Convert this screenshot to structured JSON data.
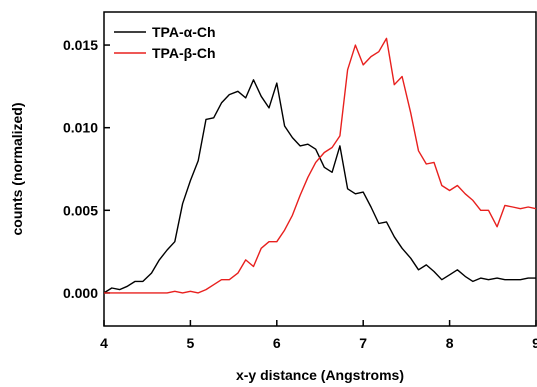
{
  "chart_data": {
    "type": "line",
    "title": "",
    "xlabel": "x-y distance (Angstroms)",
    "ylabel": "counts (normalized)",
    "xlim": [
      4,
      9
    ],
    "ylim": [
      -0.002,
      0.017
    ],
    "grid": false,
    "legend_position": "top-left",
    "x_ticks": [
      "4",
      "5",
      "6",
      "7",
      "8",
      "9"
    ],
    "y_ticks": [
      "0.000",
      "0.005",
      "0.010",
      "0.015"
    ],
    "series": [
      {
        "name": "TPA-α-Ch",
        "color": "#000000",
        "x": [
          4.0,
          4.09,
          4.18,
          4.27,
          4.36,
          4.45,
          4.55,
          4.64,
          4.73,
          4.82,
          4.91,
          5.0,
          5.09,
          5.18,
          5.27,
          5.36,
          5.45,
          5.55,
          5.64,
          5.73,
          5.82,
          5.91,
          6.0,
          6.09,
          6.18,
          6.27,
          6.36,
          6.45,
          6.55,
          6.64,
          6.73,
          6.82,
          6.91,
          7.0,
          7.09,
          7.18,
          7.27,
          7.36,
          7.45,
          7.55,
          7.64,
          7.73,
          7.82,
          7.91,
          8.0,
          8.09,
          8.18,
          8.27,
          8.36,
          8.45,
          8.55,
          8.64,
          8.73,
          8.82,
          8.91,
          9.0
        ],
        "y": [
          0.0,
          0.0003,
          0.0002,
          0.0004,
          0.0007,
          0.0007,
          0.0012,
          0.002,
          0.0026,
          0.0031,
          0.0054,
          0.0068,
          0.008,
          0.0105,
          0.0106,
          0.0115,
          0.012,
          0.0122,
          0.0118,
          0.0129,
          0.0119,
          0.0112,
          0.0127,
          0.0101,
          0.0094,
          0.0089,
          0.009,
          0.0087,
          0.0076,
          0.0073,
          0.0089,
          0.0063,
          0.006,
          0.0061,
          0.0052,
          0.0042,
          0.0043,
          0.0034,
          0.0027,
          0.0021,
          0.0014,
          0.0017,
          0.0013,
          0.0008,
          0.0011,
          0.0014,
          0.001,
          0.0007,
          0.0009,
          0.0008,
          0.0009,
          0.0008,
          0.0008,
          0.0008,
          0.0009,
          0.0009
        ]
      },
      {
        "name": "TPA-β-Ch",
        "color": "#e8201e",
        "x": [
          4.0,
          4.09,
          4.18,
          4.27,
          4.36,
          4.45,
          4.55,
          4.64,
          4.73,
          4.82,
          4.91,
          5.0,
          5.09,
          5.18,
          5.27,
          5.36,
          5.45,
          5.55,
          5.64,
          5.73,
          5.82,
          5.91,
          6.0,
          6.09,
          6.18,
          6.27,
          6.36,
          6.45,
          6.55,
          6.64,
          6.73,
          6.82,
          6.91,
          7.0,
          7.09,
          7.18,
          7.27,
          7.36,
          7.45,
          7.55,
          7.64,
          7.73,
          7.82,
          7.91,
          8.0,
          8.09,
          8.18,
          8.27,
          8.36,
          8.45,
          8.55,
          8.64,
          8.73,
          8.82,
          8.91,
          9.0
        ],
        "y": [
          0.0,
          0.0,
          0.0,
          0.0,
          0.0,
          0.0,
          0.0,
          0.0,
          0.0,
          0.0001,
          0.0,
          0.0001,
          0.0,
          0.0002,
          0.0005,
          0.0008,
          0.0008,
          0.0012,
          0.002,
          0.0016,
          0.0027,
          0.0031,
          0.0031,
          0.0038,
          0.0047,
          0.0059,
          0.007,
          0.0079,
          0.0085,
          0.0088,
          0.0095,
          0.0135,
          0.015,
          0.0138,
          0.0143,
          0.0146,
          0.0154,
          0.0126,
          0.0131,
          0.0109,
          0.0086,
          0.0078,
          0.0079,
          0.0065,
          0.0062,
          0.0065,
          0.006,
          0.0056,
          0.005,
          0.005,
          0.004,
          0.0053,
          0.0052,
          0.0051,
          0.0052,
          0.0051
        ]
      }
    ]
  }
}
